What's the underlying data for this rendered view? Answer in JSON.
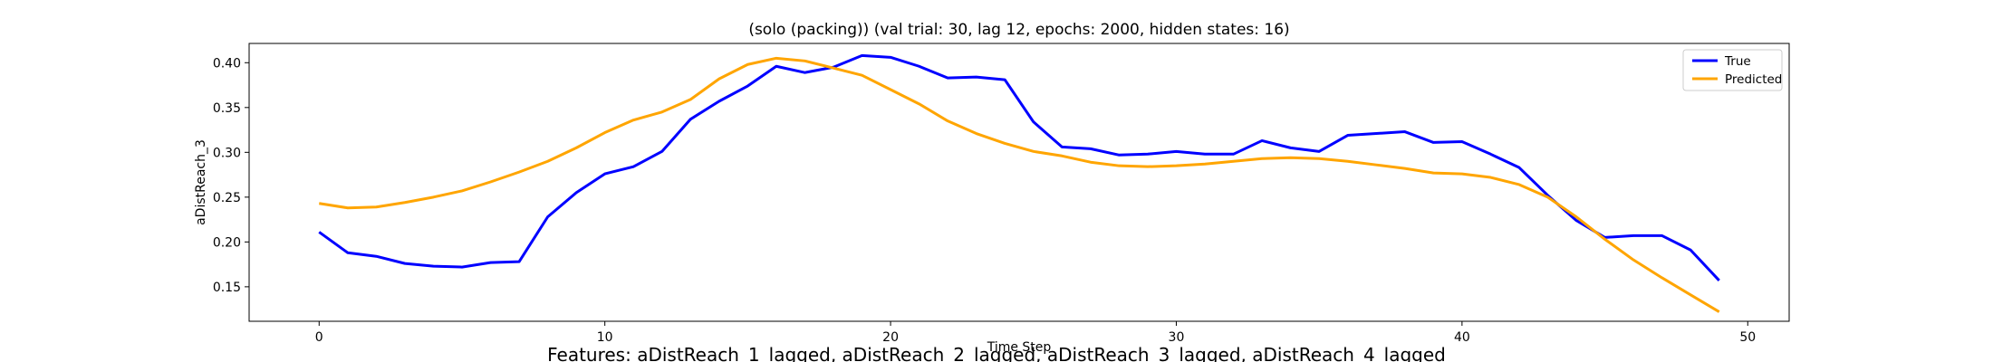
{
  "chart_data": {
    "type": "line",
    "title": "(solo (packing)) (val trial: 30, lag 12, epochs: 2000, hidden states: 16)",
    "xlabel": "Time Step",
    "ylabel": "aDistReach_3",
    "caption": "Features: aDistReach_1_lagged, aDistReach_2_lagged, aDistReach_3_lagged, aDistReach_4_lagged",
    "xlim": [
      -2.45,
      51.45
    ],
    "ylim": [
      0.1115,
      0.4215
    ],
    "xticks": [
      0,
      10,
      20,
      30,
      40,
      50
    ],
    "yticks": [
      0.15,
      0.2,
      0.25,
      0.3,
      0.35,
      0.4
    ],
    "ytick_labels": [
      "0.15",
      "0.20",
      "0.25",
      "0.30",
      "0.35",
      "0.40"
    ],
    "grid": false,
    "legend_position": "top-right",
    "x": [
      0,
      1,
      2,
      3,
      4,
      5,
      6,
      7,
      8,
      9,
      10,
      11,
      12,
      13,
      14,
      15,
      16,
      17,
      18,
      19,
      20,
      21,
      22,
      23,
      24,
      25,
      26,
      27,
      28,
      29,
      30,
      31,
      32,
      33,
      34,
      35,
      36,
      37,
      38,
      39,
      40,
      41,
      42,
      43,
      44,
      45,
      46,
      47,
      48,
      49
    ],
    "series": [
      {
        "name": "True",
        "color": "#0000ff",
        "values": [
          0.211,
          0.188,
          0.184,
          0.176,
          0.173,
          0.172,
          0.177,
          0.178,
          0.228,
          0.255,
          0.276,
          0.284,
          0.301,
          0.337,
          0.357,
          0.374,
          0.396,
          0.389,
          0.395,
          0.408,
          0.406,
          0.396,
          0.383,
          0.384,
          0.381,
          0.334,
          0.306,
          0.304,
          0.297,
          0.298,
          0.301,
          0.298,
          0.298,
          0.313,
          0.305,
          0.301,
          0.319,
          0.321,
          0.323,
          0.311,
          0.312,
          0.298,
          0.283,
          0.252,
          0.224,
          0.205,
          0.207,
          0.207,
          0.191,
          0.157
        ]
      },
      {
        "name": "Predicted",
        "color": "#ffa500",
        "values": [
          0.243,
          0.238,
          0.239,
          0.244,
          0.25,
          0.257,
          0.267,
          0.278,
          0.29,
          0.305,
          0.322,
          0.336,
          0.345,
          0.359,
          0.382,
          0.398,
          0.405,
          0.402,
          0.394,
          0.386,
          0.37,
          0.354,
          0.335,
          0.321,
          0.31,
          0.301,
          0.296,
          0.289,
          0.285,
          0.284,
          0.285,
          0.287,
          0.29,
          0.293,
          0.294,
          0.293,
          0.29,
          0.286,
          0.282,
          0.277,
          0.276,
          0.272,
          0.264,
          0.25,
          0.228,
          0.203,
          0.18,
          0.16,
          0.141,
          0.122
        ]
      }
    ]
  }
}
